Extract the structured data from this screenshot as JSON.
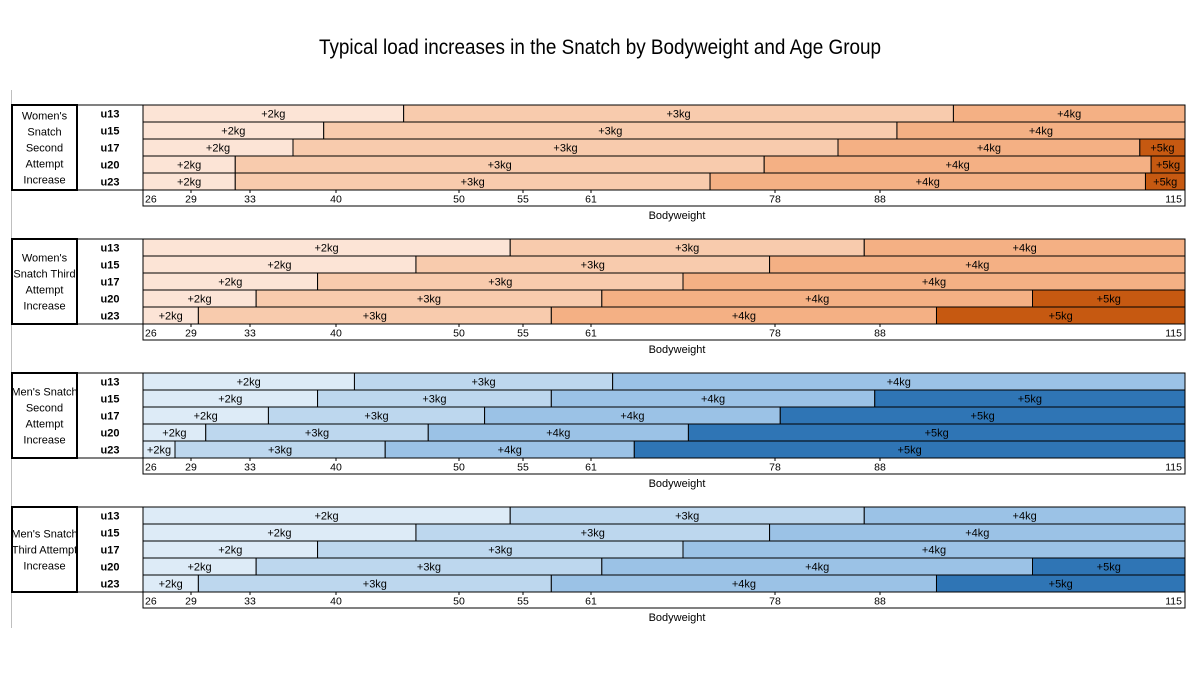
{
  "title": "Typical load increases in the Snatch by Bodyweight and Age Group",
  "axis": {
    "label": "Bodyweight",
    "tick_values": [
      26,
      29,
      33,
      40,
      50,
      55,
      61,
      78,
      88,
      115
    ]
  },
  "colors": {
    "orange": [
      "#FCE4D6",
      "#F8CBAD",
      "#F4B084",
      "#C65911"
    ],
    "blue": [
      "#DDEBF7",
      "#BDD7EE",
      "#9BC2E6",
      "#2F75B5"
    ]
  },
  "chart_data": {
    "type": "bar",
    "title": "Typical load increases in the Snatch by Bodyweight and Age Group",
    "xlabel": "Bodyweight",
    "xticks": [
      26,
      29,
      33,
      40,
      50,
      55,
      61,
      78,
      88,
      115
    ],
    "panels": [
      {
        "label": "Women's Snatch Second Attempt Increase",
        "label_lines": [
          "Women's",
          "Snatch",
          "Second",
          "Attempt",
          "Increase"
        ],
        "palette": "orange",
        "rows": [
          {
            "group": "u13",
            "segments": [
              {
                "text": "+2kg",
                "kg": 2,
                "to": 45.5
              },
              {
                "text": "+3kg",
                "kg": 3,
                "to": 94.5
              },
              {
                "text": "+4kg",
                "kg": 4,
                "to": 115
              }
            ]
          },
          {
            "group": "u15",
            "segments": [
              {
                "text": "+2kg",
                "kg": 2,
                "to": 39
              },
              {
                "text": "+3kg",
                "kg": 3,
                "to": 89.5
              },
              {
                "text": "+4kg",
                "kg": 4,
                "to": 115
              }
            ]
          },
          {
            "group": "u17",
            "segments": [
              {
                "text": "+2kg",
                "kg": 2,
                "to": 36.5
              },
              {
                "text": "+3kg",
                "kg": 3,
                "to": 84
              },
              {
                "text": "+4kg",
                "kg": 4,
                "to": 111
              },
              {
                "text": "+5kg",
                "kg": 5,
                "to": 115
              }
            ]
          },
          {
            "group": "u20",
            "segments": [
              {
                "text": "+2kg",
                "kg": 2,
                "to": 32
              },
              {
                "text": "+3kg",
                "kg": 3,
                "to": 77
              },
              {
                "text": "+4kg",
                "kg": 4,
                "to": 112
              },
              {
                "text": "+5kg",
                "kg": 5,
                "to": 115
              }
            ]
          },
          {
            "group": "u23",
            "segments": [
              {
                "text": "+2kg",
                "kg": 2,
                "to": 32
              },
              {
                "text": "+3kg",
                "kg": 3,
                "to": 72
              },
              {
                "text": "+4kg",
                "kg": 4,
                "to": 111.5
              },
              {
                "text": "+5kg",
                "kg": 5,
                "to": 115
              }
            ]
          }
        ]
      },
      {
        "label": "Women's Snatch Third Attempt Increase",
        "label_lines": [
          "Women's",
          "Snatch Third",
          "Attempt",
          "Increase"
        ],
        "palette": "orange",
        "rows": [
          {
            "group": "u13",
            "segments": [
              {
                "text": "+2kg",
                "kg": 2,
                "to": 54
              },
              {
                "text": "+3kg",
                "kg": 3,
                "to": 86.5
              },
              {
                "text": "+4kg",
                "kg": 4,
                "to": 115
              }
            ]
          },
          {
            "group": "u15",
            "segments": [
              {
                "text": "+2kg",
                "kg": 2,
                "to": 46.5
              },
              {
                "text": "+3kg",
                "kg": 3,
                "to": 77.5
              },
              {
                "text": "+4kg",
                "kg": 4,
                "to": 115
              }
            ]
          },
          {
            "group": "u17",
            "segments": [
              {
                "text": "+2kg",
                "kg": 2,
                "to": 38.5
              },
              {
                "text": "+3kg",
                "kg": 3,
                "to": 69.5
              },
              {
                "text": "+4kg",
                "kg": 4,
                "to": 115
              }
            ]
          },
          {
            "group": "u20",
            "segments": [
              {
                "text": "+2kg",
                "kg": 2,
                "to": 33.5
              },
              {
                "text": "+3kg",
                "kg": 3,
                "to": 62
              },
              {
                "text": "+4kg",
                "kg": 4,
                "to": 101.5
              },
              {
                "text": "+5kg",
                "kg": 5,
                "to": 115
              }
            ]
          },
          {
            "group": "u23",
            "segments": [
              {
                "text": "+2kg",
                "kg": 2,
                "to": 29.5
              },
              {
                "text": "+3kg",
                "kg": 3,
                "to": 57.5
              },
              {
                "text": "+4kg",
                "kg": 4,
                "to": 93
              },
              {
                "text": "+5kg",
                "kg": 5,
                "to": 115
              }
            ]
          }
        ]
      },
      {
        "label": "Men's Snatch Second Attempt Increase",
        "label_lines": [
          "Men's Snatch",
          "Second",
          "Attempt",
          "Increase"
        ],
        "palette": "blue",
        "rows": [
          {
            "group": "u13",
            "segments": [
              {
                "text": "+2kg",
                "kg": 2,
                "to": 41.5
              },
              {
                "text": "+3kg",
                "kg": 3,
                "to": 63
              },
              {
                "text": "+4kg",
                "kg": 4,
                "to": 115
              }
            ]
          },
          {
            "group": "u15",
            "segments": [
              {
                "text": "+2kg",
                "kg": 2,
                "to": 38.5
              },
              {
                "text": "+3kg",
                "kg": 3,
                "to": 57.5
              },
              {
                "text": "+4kg",
                "kg": 4,
                "to": 87.5
              },
              {
                "text": "+5kg",
                "kg": 5,
                "to": 115
              }
            ]
          },
          {
            "group": "u17",
            "segments": [
              {
                "text": "+2kg",
                "kg": 2,
                "to": 34.5
              },
              {
                "text": "+3kg",
                "kg": 3,
                "to": 52
              },
              {
                "text": "+4kg",
                "kg": 4,
                "to": 78.5
              },
              {
                "text": "+5kg",
                "kg": 5,
                "to": 115
              }
            ]
          },
          {
            "group": "u20",
            "segments": [
              {
                "text": "+2kg",
                "kg": 2,
                "to": 30
              },
              {
                "text": "+3kg",
                "kg": 3,
                "to": 47.5
              },
              {
                "text": "+4kg",
                "kg": 4,
                "to": 70
              },
              {
                "text": "+5kg",
                "kg": 5,
                "to": 115
              }
            ]
          },
          {
            "group": "u23",
            "segments": [
              {
                "text": "+2kg",
                "kg": 2,
                "to": 28
              },
              {
                "text": "+3kg",
                "kg": 3,
                "to": 44
              },
              {
                "text": "+4kg",
                "kg": 4,
                "to": 65
              },
              {
                "text": "+5kg",
                "kg": 5,
                "to": 115
              }
            ]
          }
        ]
      },
      {
        "label": "Men's Snatch Third Attempt Increase",
        "label_lines": [
          "Men's Snatch",
          "Third Attempt",
          "Increase"
        ],
        "palette": "blue",
        "rows": [
          {
            "group": "u13",
            "segments": [
              {
                "text": "+2kg",
                "kg": 2,
                "to": 54
              },
              {
                "text": "+3kg",
                "kg": 3,
                "to": 86.5
              },
              {
                "text": "+4kg",
                "kg": 4,
                "to": 115
              }
            ]
          },
          {
            "group": "u15",
            "segments": [
              {
                "text": "+2kg",
                "kg": 2,
                "to": 46.5
              },
              {
                "text": "+3kg",
                "kg": 3,
                "to": 77.5
              },
              {
                "text": "+4kg",
                "kg": 4,
                "to": 115
              }
            ]
          },
          {
            "group": "u17",
            "segments": [
              {
                "text": "+2kg",
                "kg": 2,
                "to": 38.5
              },
              {
                "text": "+3kg",
                "kg": 3,
                "to": 69.5
              },
              {
                "text": "+4kg",
                "kg": 4,
                "to": 115
              }
            ]
          },
          {
            "group": "u20",
            "segments": [
              {
                "text": "+2kg",
                "kg": 2,
                "to": 33.5
              },
              {
                "text": "+3kg",
                "kg": 3,
                "to": 62
              },
              {
                "text": "+4kg",
                "kg": 4,
                "to": 101.5
              },
              {
                "text": "+5kg",
                "kg": 5,
                "to": 115
              }
            ]
          },
          {
            "group": "u23",
            "segments": [
              {
                "text": "+2kg",
                "kg": 2,
                "to": 29.5
              },
              {
                "text": "+3kg",
                "kg": 3,
                "to": 57.5
              },
              {
                "text": "+4kg",
                "kg": 4,
                "to": 93
              },
              {
                "text": "+5kg",
                "kg": 5,
                "to": 115
              }
            ]
          }
        ]
      }
    ]
  }
}
